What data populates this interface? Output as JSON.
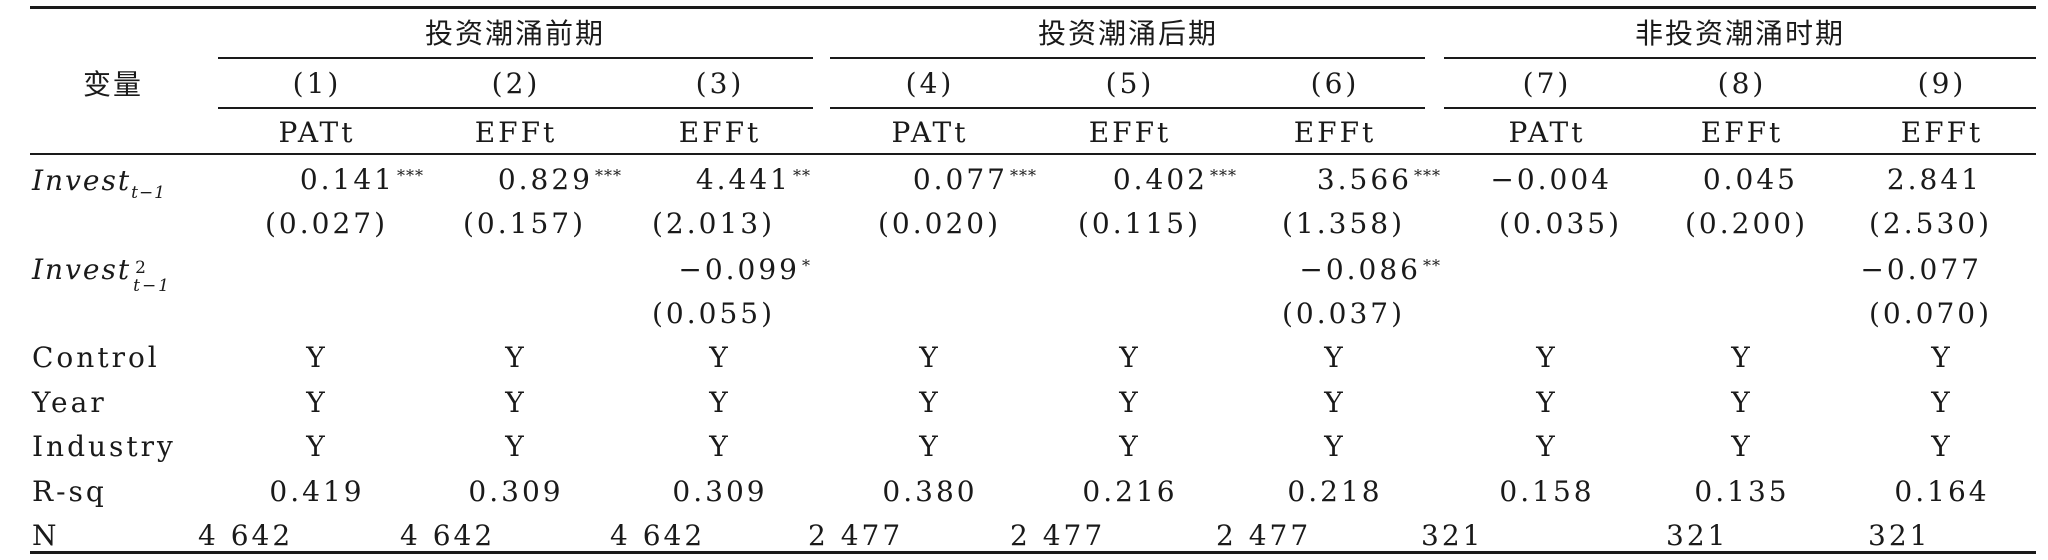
{
  "header": {
    "variable_label": "变量",
    "groups": [
      "投资潮涌前期",
      "投资潮涌后期",
      "非投资潮涌时期"
    ],
    "columns": [
      "(1)",
      "(2)",
      "(3)",
      "(4)",
      "(5)",
      "(6)",
      "(7)",
      "(8)",
      "(9)"
    ],
    "dependents": [
      "PATt",
      "EFFt",
      "EFFt",
      "PATt",
      "EFFt",
      "EFFt",
      "PATt",
      "EFFt",
      "EFFt"
    ]
  },
  "rows": {
    "invest": {
      "label_base": "Invest",
      "label_sub": "t−1",
      "coef": [
        "0.141",
        "0.829",
        "4.441",
        "0.077",
        "0.402",
        "3.566",
        "−0.004",
        "0.045",
        "2.841"
      ],
      "stars": [
        "***",
        "***",
        "**",
        "***",
        "***",
        "***",
        "",
        "",
        ""
      ],
      "se": [
        "(0.027)",
        "(0.157)",
        "(2.013)",
        "(0.020)",
        "(0.115)",
        "(1.358)",
        "(0.035)",
        "(0.200)",
        "(2.530)"
      ]
    },
    "invest_sq": {
      "label_base": "Invest",
      "label_sup": "2",
      "label_sub": "t−1",
      "coef": [
        "",
        "",
        "−0.099",
        "",
        "",
        "−0.086",
        "",
        "",
        "−0.077"
      ],
      "stars": [
        "",
        "",
        "*",
        "",
        "",
        "**",
        "",
        "",
        ""
      ],
      "se": [
        "",
        "",
        "(0.055)",
        "",
        "",
        "(0.037)",
        "",
        "",
        "(0.070)"
      ]
    },
    "control": {
      "label": "Control",
      "values": [
        "Y",
        "Y",
        "Y",
        "Y",
        "Y",
        "Y",
        "Y",
        "Y",
        "Y"
      ]
    },
    "year": {
      "label": "Year",
      "values": [
        "Y",
        "Y",
        "Y",
        "Y",
        "Y",
        "Y",
        "Y",
        "Y",
        "Y"
      ]
    },
    "industry": {
      "label": "Industry",
      "values": [
        "Y",
        "Y",
        "Y",
        "Y",
        "Y",
        "Y",
        "Y",
        "Y",
        "Y"
      ]
    },
    "rsq": {
      "label": "R-sq",
      "values": [
        "0.419",
        "0.309",
        "0.309",
        "0.380",
        "0.216",
        "0.218",
        "0.158",
        "0.135",
        "0.164"
      ]
    },
    "n": {
      "label": "N",
      "values": [
        "4 642",
        "4 642",
        "4 642",
        "2 477",
        "2 477",
        "2 477",
        "321",
        "321",
        "321"
      ]
    }
  }
}
